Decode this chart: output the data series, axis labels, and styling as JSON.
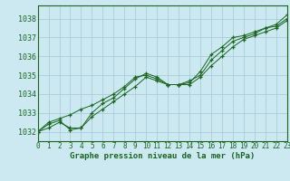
{
  "title": "Graphe pression niveau de la mer (hPa)",
  "bg_color": "#cce8f0",
  "grid_color": "#aacdd8",
  "line_color": "#1a6620",
  "marker_color": "#1a6620",
  "x_min": 0,
  "x_max": 23,
  "y_min": 1031.5,
  "y_max": 1038.7,
  "y_ticks": [
    1032,
    1033,
    1034,
    1035,
    1036,
    1037,
    1038
  ],
  "x_ticks": [
    0,
    1,
    2,
    3,
    4,
    5,
    6,
    7,
    8,
    9,
    10,
    11,
    12,
    13,
    14,
    15,
    16,
    17,
    18,
    19,
    20,
    21,
    22,
    23
  ],
  "series": [
    [
      1032.0,
      1032.2,
      1032.5,
      1032.2,
      1032.2,
      1033.0,
      1033.5,
      1033.8,
      1034.3,
      1034.8,
      1035.1,
      1034.9,
      1034.5,
      1034.5,
      1034.6,
      1035.2,
      1036.1,
      1036.5,
      1037.0,
      1037.1,
      1037.3,
      1037.5,
      1037.7,
      1038.2
    ],
    [
      1032.0,
      1032.4,
      1032.6,
      1032.1,
      1032.2,
      1032.8,
      1033.2,
      1033.6,
      1034.0,
      1034.4,
      1034.9,
      1034.7,
      1034.5,
      1034.5,
      1034.7,
      1035.0,
      1035.8,
      1036.3,
      1036.8,
      1037.0,
      1037.2,
      1037.5,
      1037.6,
      1038.0
    ],
    [
      1032.0,
      1032.5,
      1032.7,
      1032.9,
      1033.2,
      1033.4,
      1033.7,
      1034.0,
      1034.4,
      1034.9,
      1035.0,
      1034.8,
      1034.5,
      1034.5,
      1034.5,
      1034.9,
      1035.5,
      1036.0,
      1036.5,
      1036.9,
      1037.1,
      1037.3,
      1037.5,
      1037.9
    ]
  ],
  "tick_fontsize": 5.5,
  "label_fontsize": 6.5
}
